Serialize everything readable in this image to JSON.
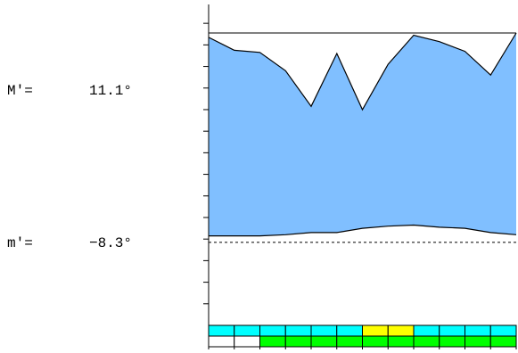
{
  "labels": {
    "max_name": "M′=",
    "max_value": "11.1°",
    "min_name": "m′=",
    "min_value": "−8.3°"
  },
  "colors": {
    "band_fill": "#80bfff",
    "strip_cyan": "#00ffff",
    "strip_yellow": "#ffff00",
    "strip_green": "#00ff00",
    "strip_white": "#ffffff",
    "line": "#000000"
  },
  "chart_data": {
    "type": "area",
    "title": "",
    "xlabel": "",
    "ylabel": "",
    "ylim": [
      -16,
      13.5
    ],
    "y_tick_step": 1,
    "grid": false,
    "x": [
      1,
      2,
      3,
      4,
      5,
      6,
      7,
      8,
      9,
      10,
      11,
      12,
      13
    ],
    "series": [
      {
        "role": "upper",
        "values": [
          10.7,
          9.5,
          9.3,
          7.6,
          4.3,
          9.2,
          4.0,
          8.2,
          10.9,
          10.3,
          9.4,
          7.2,
          11.1
        ]
      },
      {
        "role": "lower",
        "values": [
          -7.7,
          -7.7,
          -7.7,
          -7.6,
          -7.4,
          -7.4,
          -7.0,
          -6.8,
          -6.7,
          -6.9,
          -7.0,
          -7.4,
          -7.6
        ]
      }
    ],
    "reference_lines": [
      {
        "name": "M′",
        "value": 11.1,
        "style": "solid"
      },
      {
        "name": "m′",
        "value": -8.3,
        "style": "dashed"
      }
    ],
    "strip_top": [
      "cyan",
      "cyan",
      "cyan",
      "cyan",
      "cyan",
      "cyan",
      "yellow",
      "yellow",
      "cyan",
      "cyan",
      "cyan",
      "cyan"
    ],
    "strip_bottom": [
      "white",
      "white",
      "green",
      "green",
      "green",
      "green",
      "green",
      "green",
      "green",
      "green",
      "green",
      "green"
    ]
  }
}
